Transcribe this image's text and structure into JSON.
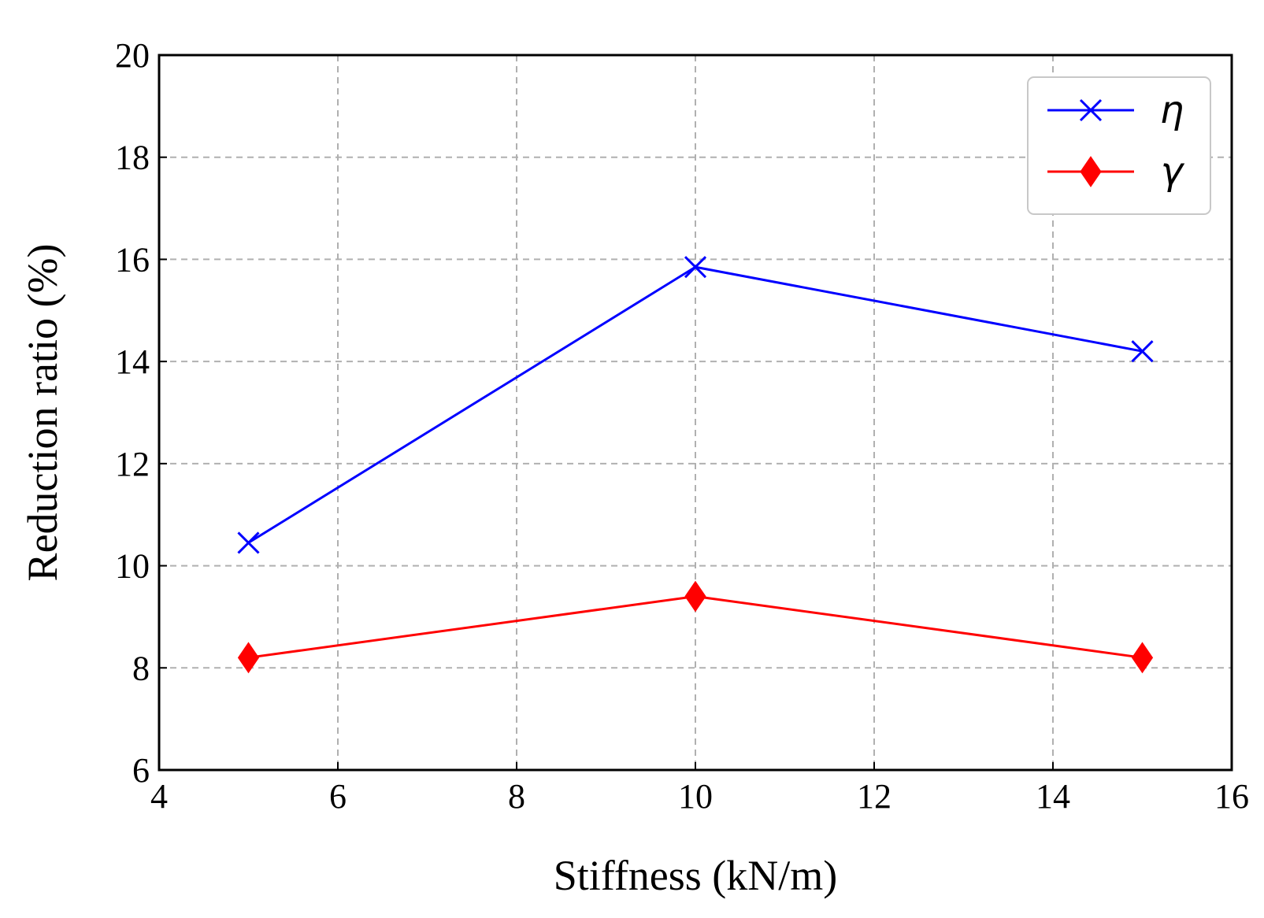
{
  "chart_data": {
    "type": "line",
    "title": "",
    "xlabel": "Stiffness (kN/m)",
    "ylabel": "Reduction ratio (%)",
    "xlim": [
      4,
      16
    ],
    "ylim": [
      6,
      20
    ],
    "xticks": [
      4,
      6,
      8,
      10,
      12,
      14,
      16
    ],
    "yticks": [
      6,
      8,
      10,
      12,
      14,
      16,
      18,
      20
    ],
    "grid": true,
    "legend_position": "top-right",
    "x": [
      5,
      10,
      15
    ],
    "series": [
      {
        "name": "η",
        "values": [
          10.45,
          15.85,
          14.2
        ],
        "color": "#0000ff",
        "marker": "x"
      },
      {
        "name": "γ",
        "values": [
          8.2,
          9.4,
          8.2
        ],
        "color": "#ff0000",
        "marker": "diamond"
      }
    ]
  }
}
